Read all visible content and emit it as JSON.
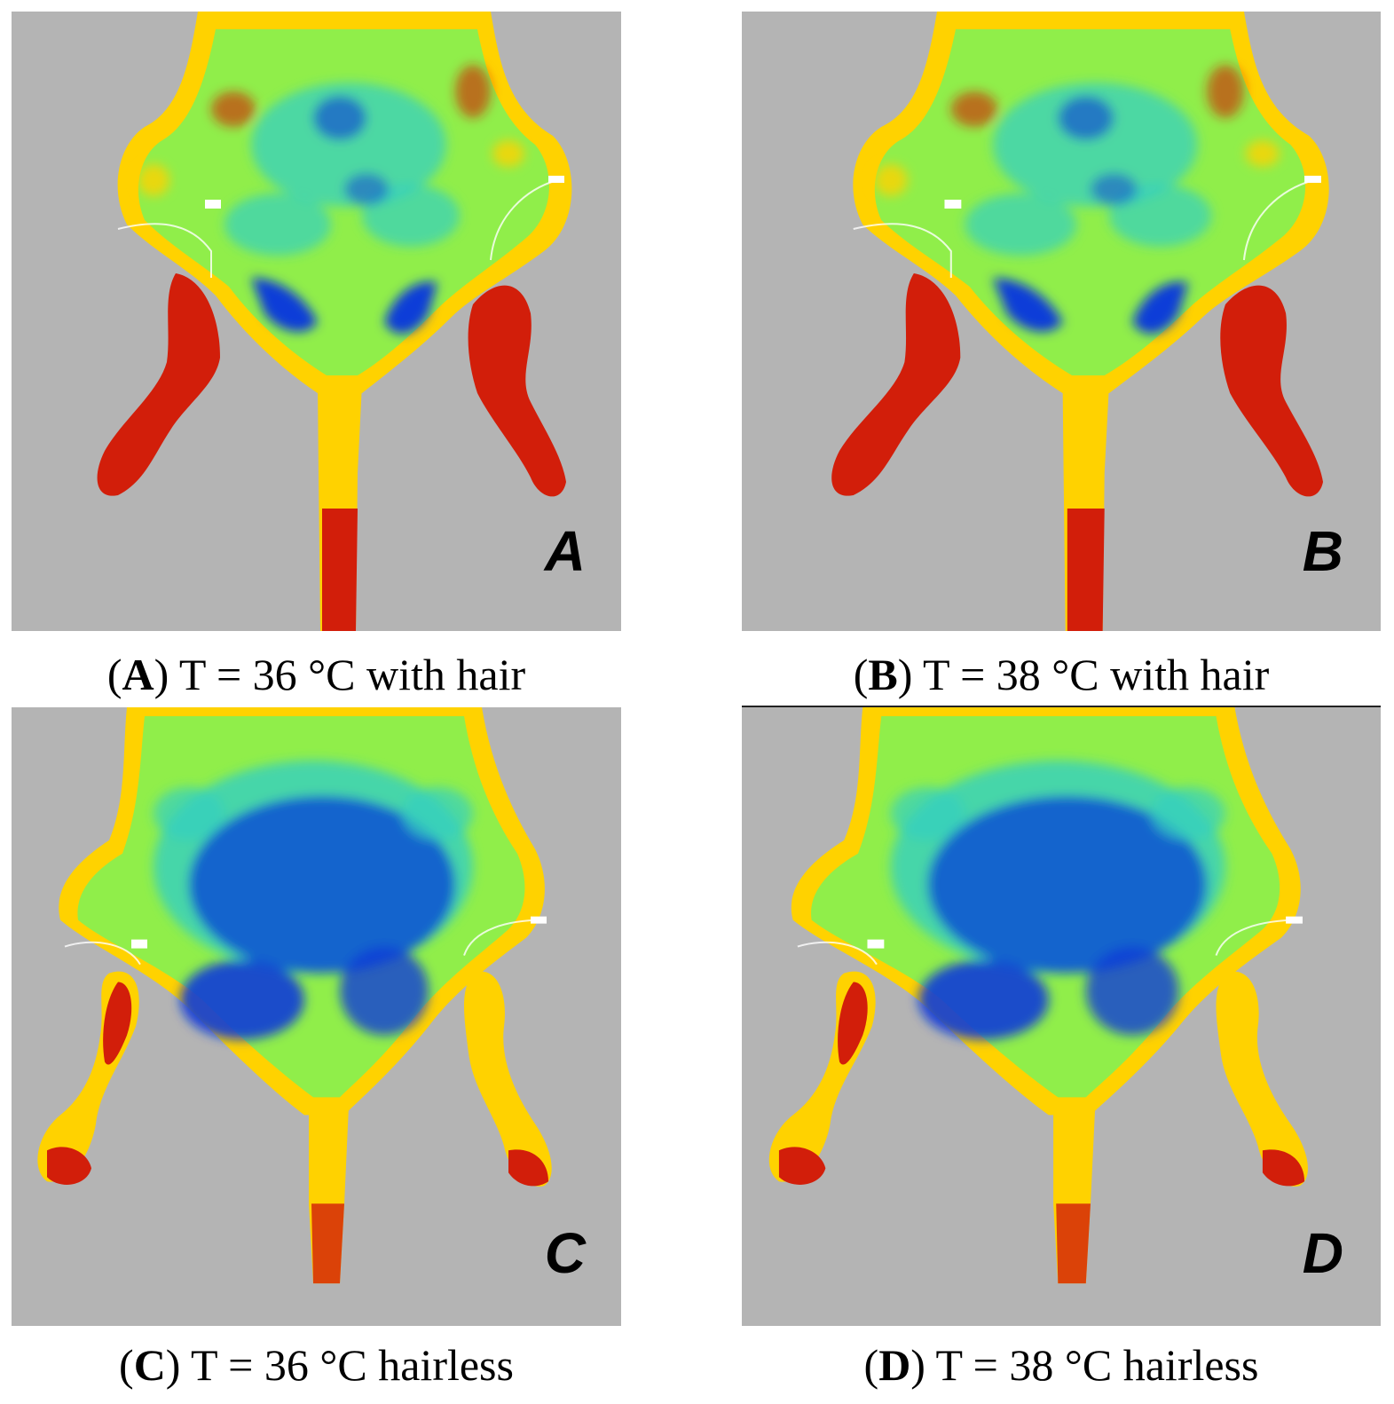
{
  "figure": {
    "panels": [
      {
        "id": "A",
        "letter": "A",
        "caption_letter": "A",
        "caption_text": "T = 36 °C with hair",
        "temperature_c": 36,
        "hair": true
      },
      {
        "id": "B",
        "letter": "B",
        "caption_letter": "B",
        "caption_text": "T = 38 °C with hair",
        "temperature_c": 38,
        "hair": true
      },
      {
        "id": "C",
        "letter": "C",
        "caption_letter": "C",
        "caption_text": "T = 36 °C hairless",
        "temperature_c": 36,
        "hair": false
      },
      {
        "id": "D",
        "letter": "D",
        "caption_letter": "D",
        "caption_text": "T = 38 °C hairless",
        "temperature_c": 38,
        "hair": false
      }
    ],
    "colors": {
      "background": "#b4b4b4",
      "hot": "#d21e0a",
      "warm": "#ffd200",
      "mid": "#90ee4a",
      "cool": "#34d0c0",
      "cold": "#0a3cd8"
    }
  }
}
